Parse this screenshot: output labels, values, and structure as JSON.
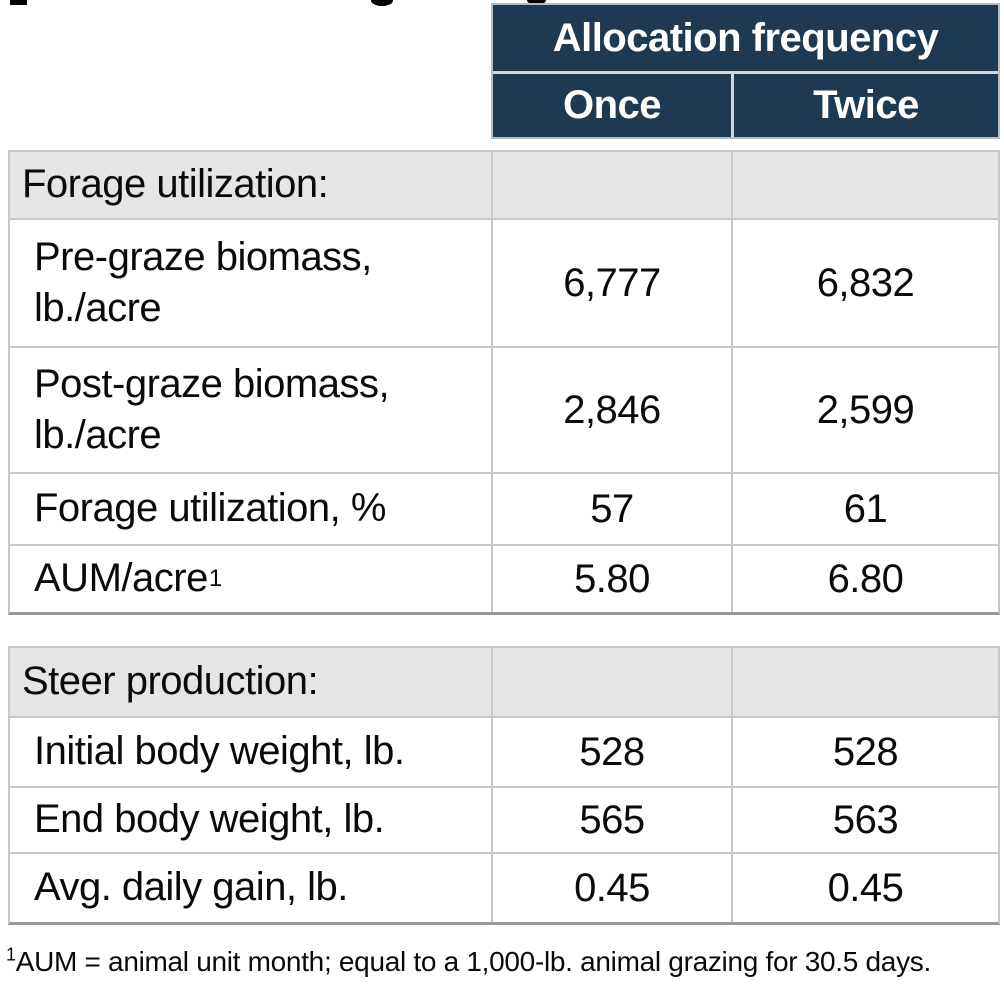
{
  "header": {
    "group_label": "Allocation frequency",
    "columns": [
      "Once",
      "Twice"
    ]
  },
  "tables": [
    {
      "section": "Forage utilization:",
      "rows": [
        {
          "label": "Pre-graze biomass, lb./acre",
          "once": "6,777",
          "twice": "6,832"
        },
        {
          "label": "Post-graze biomass, lb./acre",
          "once": "2,846",
          "twice": "2,599"
        },
        {
          "label": "Forage utilization, %",
          "once": "57",
          "twice": "61"
        },
        {
          "label": "AUM/acre",
          "label_sup": "1",
          "once": "5.80",
          "twice": "6.80"
        }
      ]
    },
    {
      "section": "Steer production:",
      "rows": [
        {
          "label": "Initial body weight, lb.",
          "once": "528",
          "twice": "528"
        },
        {
          "label": "End body weight, lb.",
          "once": "565",
          "twice": "563"
        },
        {
          "label": "Avg. daily gain, lb.",
          "once": "0.45",
          "twice": "0.45"
        }
      ]
    }
  ],
  "footnote": {
    "sup": "1",
    "text": "AUM = animal unit month; equal to a 1,000-lb. animal grazing for 30.5 days."
  },
  "colors": {
    "header_bg": "#1e3a52",
    "header_text": "#ffffff",
    "section_row_bg": "#e4e5e7",
    "grid_border": "#c6c8ca",
    "outer_bottom_border": "#979899",
    "text": "#0a0a0a"
  }
}
